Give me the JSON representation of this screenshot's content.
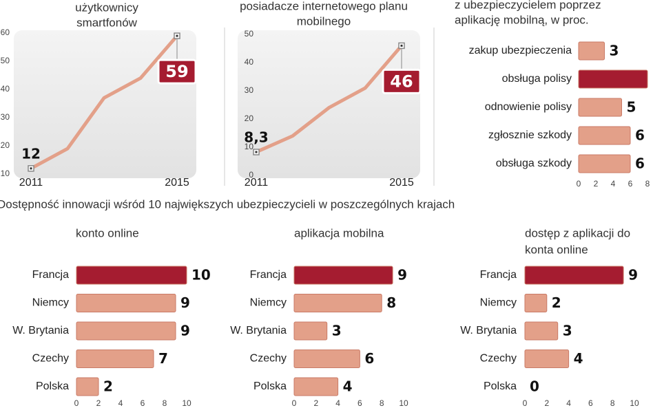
{
  "section_title": "Dostępność innowacji wśród 10 największych ubezpieczycieli w poszczególnych krajach",
  "chart_data": [
    {
      "type": "line",
      "title_lines": [
        "użytkownicy",
        "smartfonów"
      ],
      "categories": [
        "2011",
        null,
        null,
        null,
        "2015"
      ],
      "values": [
        12,
        19,
        37,
        44,
        59
      ],
      "value_labels": [
        "12",
        null,
        null,
        null,
        "59"
      ],
      "color": "#e3a089",
      "highlight_color": "#a51c30",
      "ylim": [
        10,
        60
      ],
      "yticks": [
        10,
        20,
        30,
        40,
        50,
        60
      ]
    },
    {
      "type": "line",
      "title_lines": [
        "posiadacze internetowego planu",
        "mobilnego"
      ],
      "categories": [
        "2011",
        null,
        null,
        null,
        "2015"
      ],
      "values": [
        8.3,
        14,
        24,
        31,
        46
      ],
      "value_labels": [
        "8,3",
        null,
        null,
        null,
        "46"
      ],
      "color": "#e3a089",
      "highlight_color": "#a51c30",
      "ylim": [
        0,
        50
      ],
      "yticks": [
        0,
        10,
        20,
        30,
        40,
        50
      ]
    },
    {
      "type": "bar",
      "orientation": "horizontal",
      "title_lines": [
        "z ubezpieczycielem poprzez",
        "aplikację mobilną, w proc."
      ],
      "categories": [
        "zakup ubezpieczenia",
        "obsługa polisy",
        "odnowienie polisy",
        "zgłosznie szkody",
        "obsługa szkody"
      ],
      "values": [
        3,
        8,
        5,
        6,
        6
      ],
      "colors": [
        "#e3a089",
        "#a51c30",
        "#e3a089",
        "#e3a089",
        "#e3a089"
      ],
      "xlim": [
        0,
        8
      ],
      "xticks": [
        0,
        2,
        4,
        6,
        8
      ]
    },
    {
      "type": "bar",
      "orientation": "horizontal",
      "title_lines": [
        "konto online"
      ],
      "categories": [
        "Francja",
        "Niemcy",
        "W. Brytania",
        "Czechy",
        "Polska"
      ],
      "values": [
        10,
        9,
        9,
        7,
        2
      ],
      "colors": [
        "#a51c30",
        "#e3a089",
        "#e3a089",
        "#e3a089",
        "#e3a089"
      ],
      "xlim": [
        0,
        10
      ],
      "xticks": [
        0,
        2,
        4,
        6,
        8,
        10
      ]
    },
    {
      "type": "bar",
      "orientation": "horizontal",
      "title_lines": [
        "aplikacja mobilna"
      ],
      "categories": [
        "Francja",
        "Niemcy",
        "W. Brytania",
        "Czechy",
        "Polska"
      ],
      "values": [
        9,
        8,
        3,
        6,
        4
      ],
      "colors": [
        "#a51c30",
        "#e3a089",
        "#e3a089",
        "#e3a089",
        "#e3a089"
      ],
      "xlim": [
        0,
        10
      ],
      "xticks": [
        0,
        2,
        4,
        6,
        8,
        10
      ]
    },
    {
      "type": "bar",
      "orientation": "horizontal",
      "title_lines": [
        "dostęp z aplikacji do",
        "konta online"
      ],
      "categories": [
        "Francja",
        "Niemcy",
        "W. Brytania",
        "Czechy",
        "Polska"
      ],
      "values": [
        9,
        2,
        3,
        4,
        0
      ],
      "colors": [
        "#a51c30",
        "#e3a089",
        "#e3a089",
        "#e3a089",
        "#e3a089"
      ],
      "xlim": [
        0,
        10
      ],
      "xticks": [
        0,
        2,
        4,
        6,
        8,
        10
      ]
    }
  ]
}
